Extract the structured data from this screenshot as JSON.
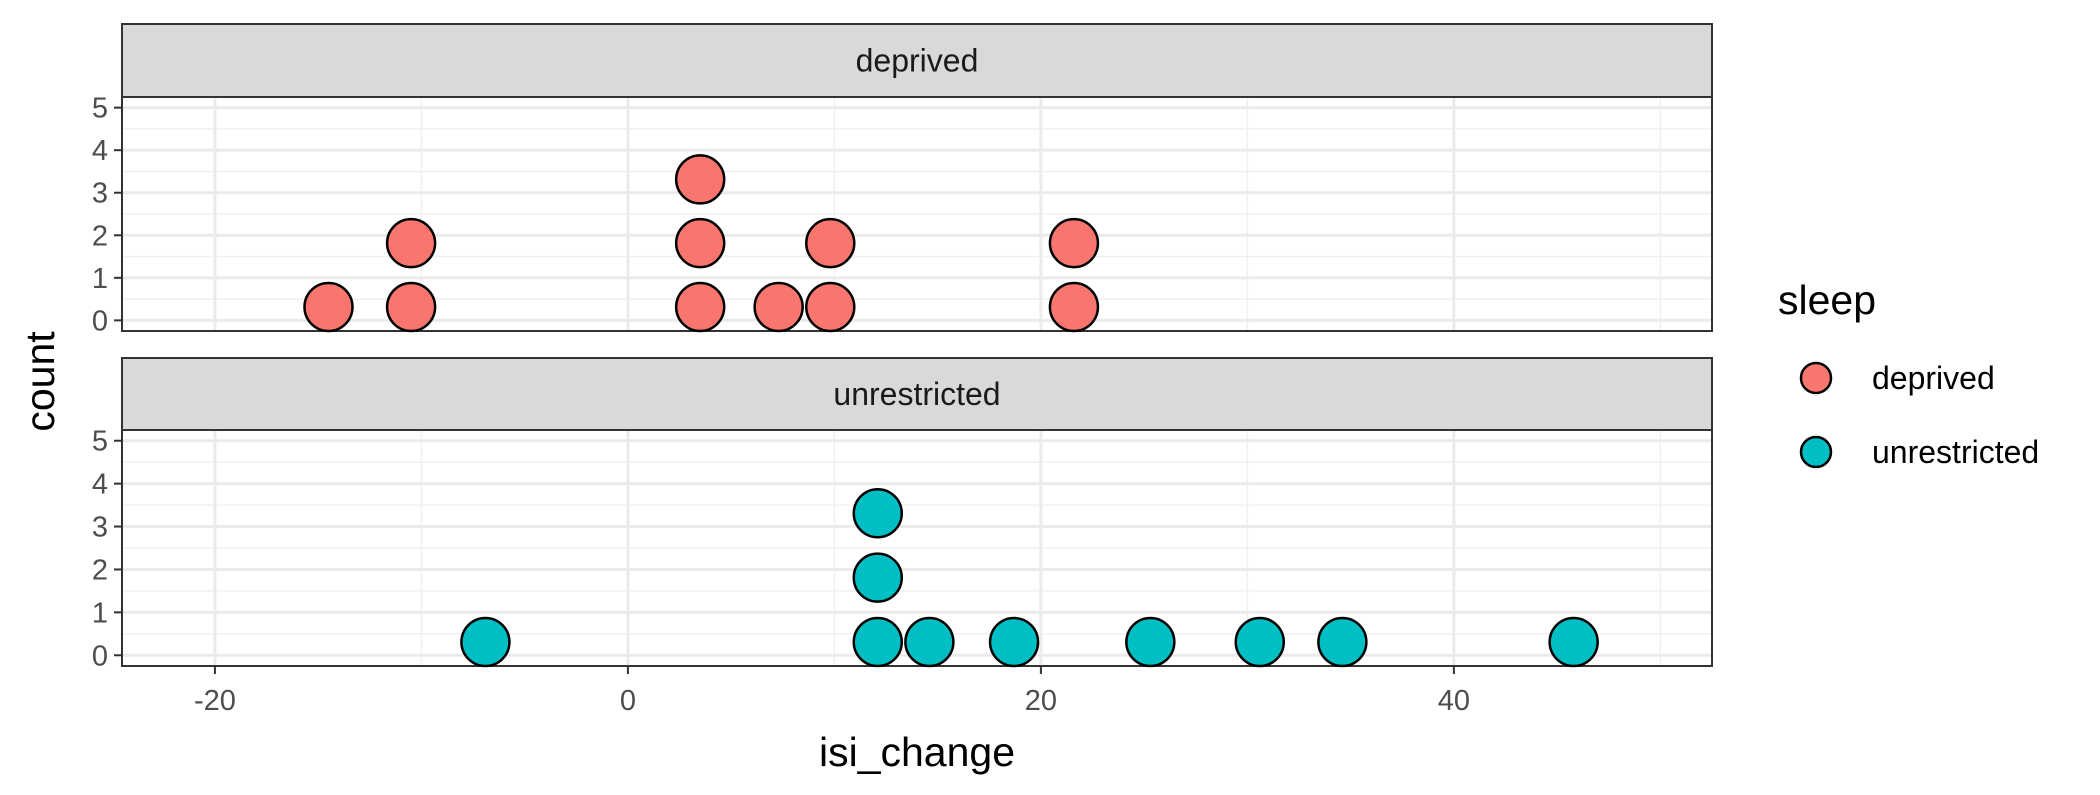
{
  "chart_data": {
    "type": "dotplot",
    "xlabel": "isi_change",
    "ylabel": "count",
    "xlim": [
      -24.5,
      52.5
    ],
    "ylim": [
      -0.25,
      5.25
    ],
    "x_ticks": [
      -20,
      0,
      20,
      40
    ],
    "x_tick_labels": [
      "-20",
      "0",
      "20",
      "40"
    ],
    "y_ticks": [
      0,
      1,
      2,
      3,
      4,
      5
    ],
    "y_tick_labels": [
      "0",
      "1",
      "2",
      "3",
      "4",
      "5"
    ],
    "grid": true,
    "legend": {
      "title": "sleep",
      "position": "right",
      "entries": [
        {
          "label": "deprived",
          "color": "#F8766D"
        },
        {
          "label": "unrestricted",
          "color": "#00BFC4"
        }
      ]
    },
    "facets": [
      {
        "label": "deprived",
        "color": "#F8766D",
        "points": [
          {
            "x": -14.5,
            "stack": 1
          },
          {
            "x": -10.5,
            "stack": 1
          },
          {
            "x": -10.5,
            "stack": 2
          },
          {
            "x": 3.5,
            "stack": 1
          },
          {
            "x": 3.5,
            "stack": 2
          },
          {
            "x": 3.5,
            "stack": 3
          },
          {
            "x": 7.3,
            "stack": 1
          },
          {
            "x": 9.8,
            "stack": 1
          },
          {
            "x": 9.8,
            "stack": 2
          },
          {
            "x": 21.6,
            "stack": 1
          },
          {
            "x": 21.6,
            "stack": 2
          }
        ]
      },
      {
        "label": "unrestricted",
        "color": "#00BFC4",
        "points": [
          {
            "x": -6.9,
            "stack": 1
          },
          {
            "x": 12.1,
            "stack": 1
          },
          {
            "x": 12.1,
            "stack": 2
          },
          {
            "x": 12.1,
            "stack": 3
          },
          {
            "x": 14.6,
            "stack": 1
          },
          {
            "x": 18.7,
            "stack": 1
          },
          {
            "x": 25.3,
            "stack": 1
          },
          {
            "x": 30.6,
            "stack": 1
          },
          {
            "x": 34.6,
            "stack": 1
          },
          {
            "x": 45.8,
            "stack": 1
          }
        ]
      }
    ]
  }
}
